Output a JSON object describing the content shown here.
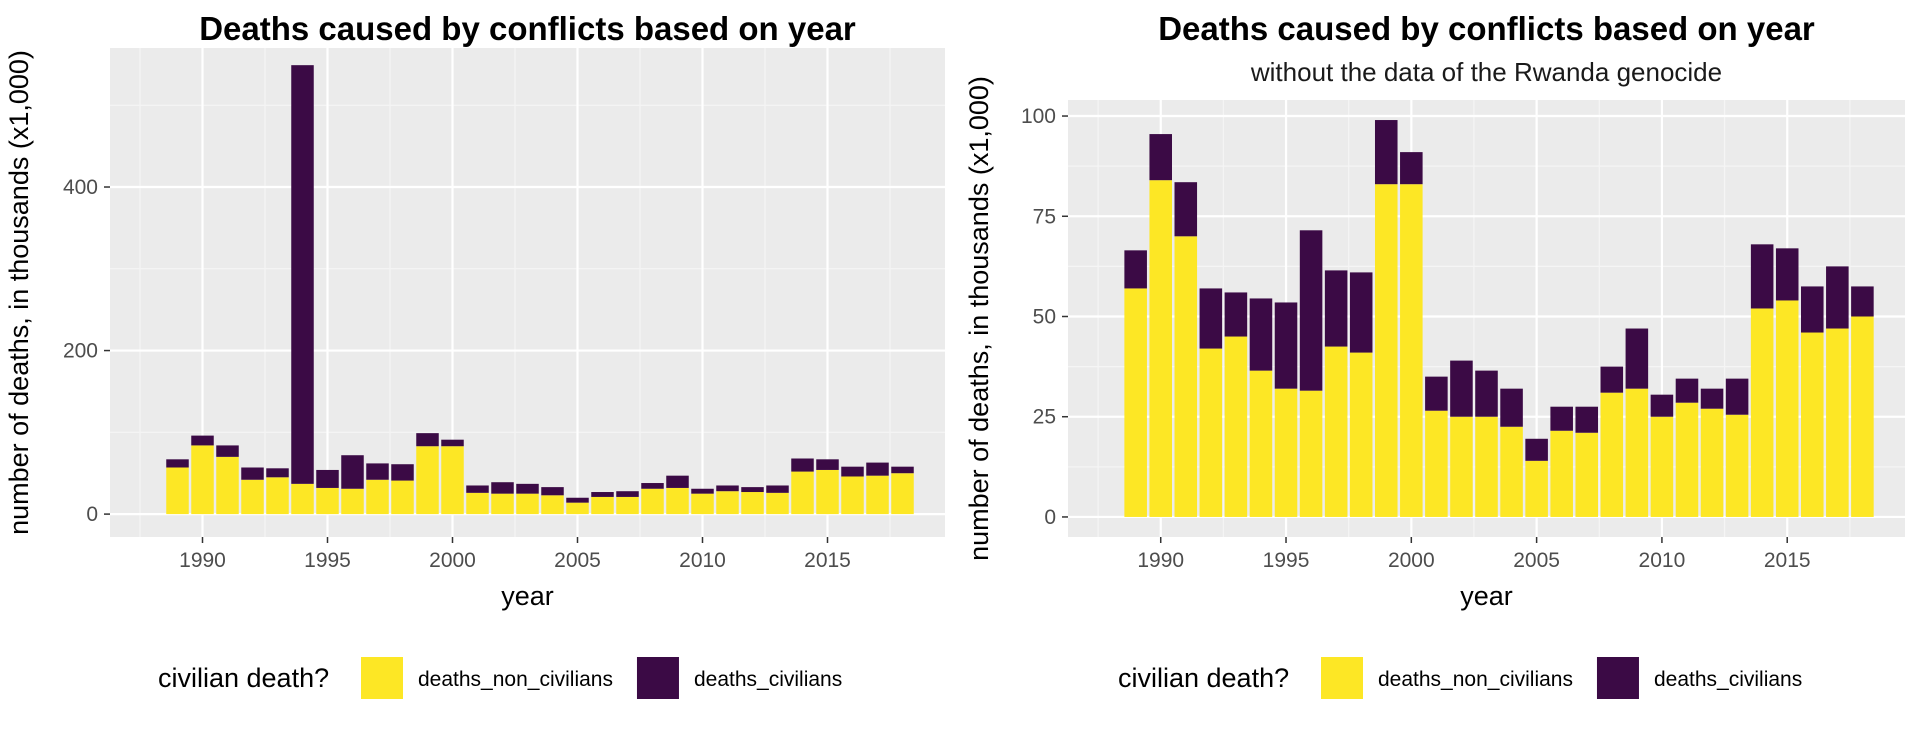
{
  "colors": {
    "panel_background": "#ebebeb",
    "grid_major": "#ffffff",
    "grid_minor": "#f5f5f5",
    "deaths_non_civilians": "#fde725",
    "deaths_civilians": "#3b0a45",
    "tick_color": "#333333"
  },
  "chart_data": [
    {
      "type": "bar",
      "stacked": true,
      "title": "Deaths caused by conflicts based on year",
      "subtitle": "",
      "xlabel": "year",
      "ylabel": "number of deaths, in thousands (x1,000)",
      "x": [
        1989,
        1990,
        1991,
        1992,
        1993,
        1994,
        1995,
        1996,
        1997,
        1998,
        1999,
        2000,
        2001,
        2002,
        2003,
        2004,
        2005,
        2006,
        2007,
        2008,
        2009,
        2010,
        2011,
        2012,
        2013,
        2014,
        2015,
        2016,
        2017,
        2018
      ],
      "xlim": [
        1986.3,
        2019.7
      ],
      "xticks": [
        1990,
        1995,
        2000,
        2005,
        2010,
        2015
      ],
      "ylim": [
        -28,
        570
      ],
      "yticks": [
        0,
        200,
        400
      ],
      "grid": true,
      "legend_position": "bottom",
      "legend_title": "civilian death?",
      "series": [
        {
          "name": "deaths_non_civilians",
          "values": [
            57,
            84,
            70,
            42,
            45,
            37,
            32,
            31,
            42,
            41,
            83,
            83,
            26,
            25,
            25,
            23,
            14,
            21,
            21,
            31,
            32,
            25,
            28,
            27,
            26,
            52,
            54,
            46,
            47,
            50
          ]
        },
        {
          "name": "deaths_civilians",
          "values": [
            10,
            12,
            14,
            15,
            11,
            512,
            22,
            41,
            20,
            20,
            16,
            8,
            9,
            14,
            12,
            10,
            6,
            6,
            7,
            7,
            15,
            6,
            7,
            6,
            9,
            16,
            13,
            12,
            16,
            8
          ]
        }
      ]
    },
    {
      "type": "bar",
      "stacked": true,
      "title": "Deaths caused by conflicts based on year",
      "subtitle": "without the data of the Rwanda genocide",
      "xlabel": "year",
      "ylabel": "number of deaths, in thousands (x1,000)",
      "x": [
        1989,
        1990,
        1991,
        1992,
        1993,
        1994,
        1995,
        1996,
        1997,
        1998,
        1999,
        2000,
        2001,
        2002,
        2003,
        2004,
        2005,
        2006,
        2007,
        2008,
        2009,
        2010,
        2011,
        2012,
        2013,
        2014,
        2015,
        2016,
        2017,
        2018
      ],
      "xlim": [
        1986.3,
        2019.7
      ],
      "xticks": [
        1990,
        1995,
        2000,
        2005,
        2010,
        2015
      ],
      "ylim": [
        -5,
        104
      ],
      "yticks": [
        0,
        25,
        50,
        75,
        100
      ],
      "grid": true,
      "legend_position": "bottom",
      "legend_title": "civilian death?",
      "series": [
        {
          "name": "deaths_non_civilians",
          "values": [
            57,
            84,
            70,
            42,
            45,
            36.5,
            32,
            31.5,
            42.5,
            41,
            83,
            83,
            26.5,
            25,
            25,
            22.5,
            14,
            21.5,
            21,
            31,
            32,
            25,
            28.5,
            27,
            25.5,
            52,
            54,
            46,
            47,
            50
          ]
        },
        {
          "name": "deaths_civilians",
          "values": [
            9.5,
            11.5,
            13.5,
            15,
            11,
            18,
            21.5,
            40,
            19,
            20,
            16,
            8,
            8.5,
            14,
            11.5,
            9.5,
            5.5,
            6,
            6.5,
            6.5,
            15,
            5.5,
            6,
            5,
            9,
            16,
            13,
            11.5,
            15.5,
            7.5
          ]
        }
      ]
    }
  ]
}
